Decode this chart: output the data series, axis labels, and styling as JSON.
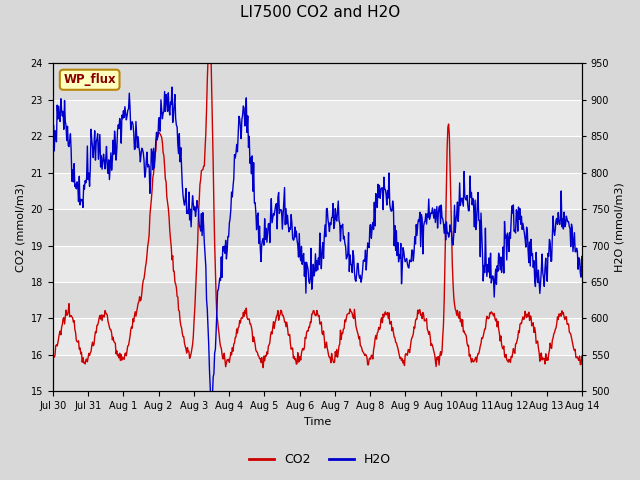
{
  "title": "LI7500 CO2 and H2O",
  "xlabel": "Time",
  "ylabel_left": "CO2 (mmol/m3)",
  "ylabel_right": "H2O (mmol/m3)",
  "site_label": "WP_flux",
  "ylim_left": [
    15.0,
    24.0
  ],
  "ylim_right": [
    500,
    950
  ],
  "yticks_left": [
    15.0,
    16.0,
    17.0,
    18.0,
    19.0,
    20.0,
    21.0,
    22.0,
    23.0,
    24.0
  ],
  "yticks_right": [
    500,
    550,
    600,
    650,
    700,
    750,
    800,
    850,
    900,
    950
  ],
  "xtick_labels": [
    "Jul 30",
    "Jul 31",
    "Aug 1",
    "Aug 2",
    "Aug 3",
    "Aug 4",
    "Aug 5",
    "Aug 6",
    "Aug 7",
    "Aug 8",
    "Aug 9",
    "Aug 10",
    "Aug 11",
    "Aug 12",
    "Aug 13",
    "Aug 14"
  ],
  "bg_color": "#d8d8d8",
  "plot_bg_color": "#e8e8e8",
  "grid_color": "#ffffff",
  "co2_color": "#cc0000",
  "h2o_color": "#0000cc",
  "co2_linewidth": 1.0,
  "h2o_linewidth": 1.0,
  "title_fontsize": 11,
  "axis_fontsize": 8,
  "tick_fontsize": 7,
  "legend_fontsize": 9
}
